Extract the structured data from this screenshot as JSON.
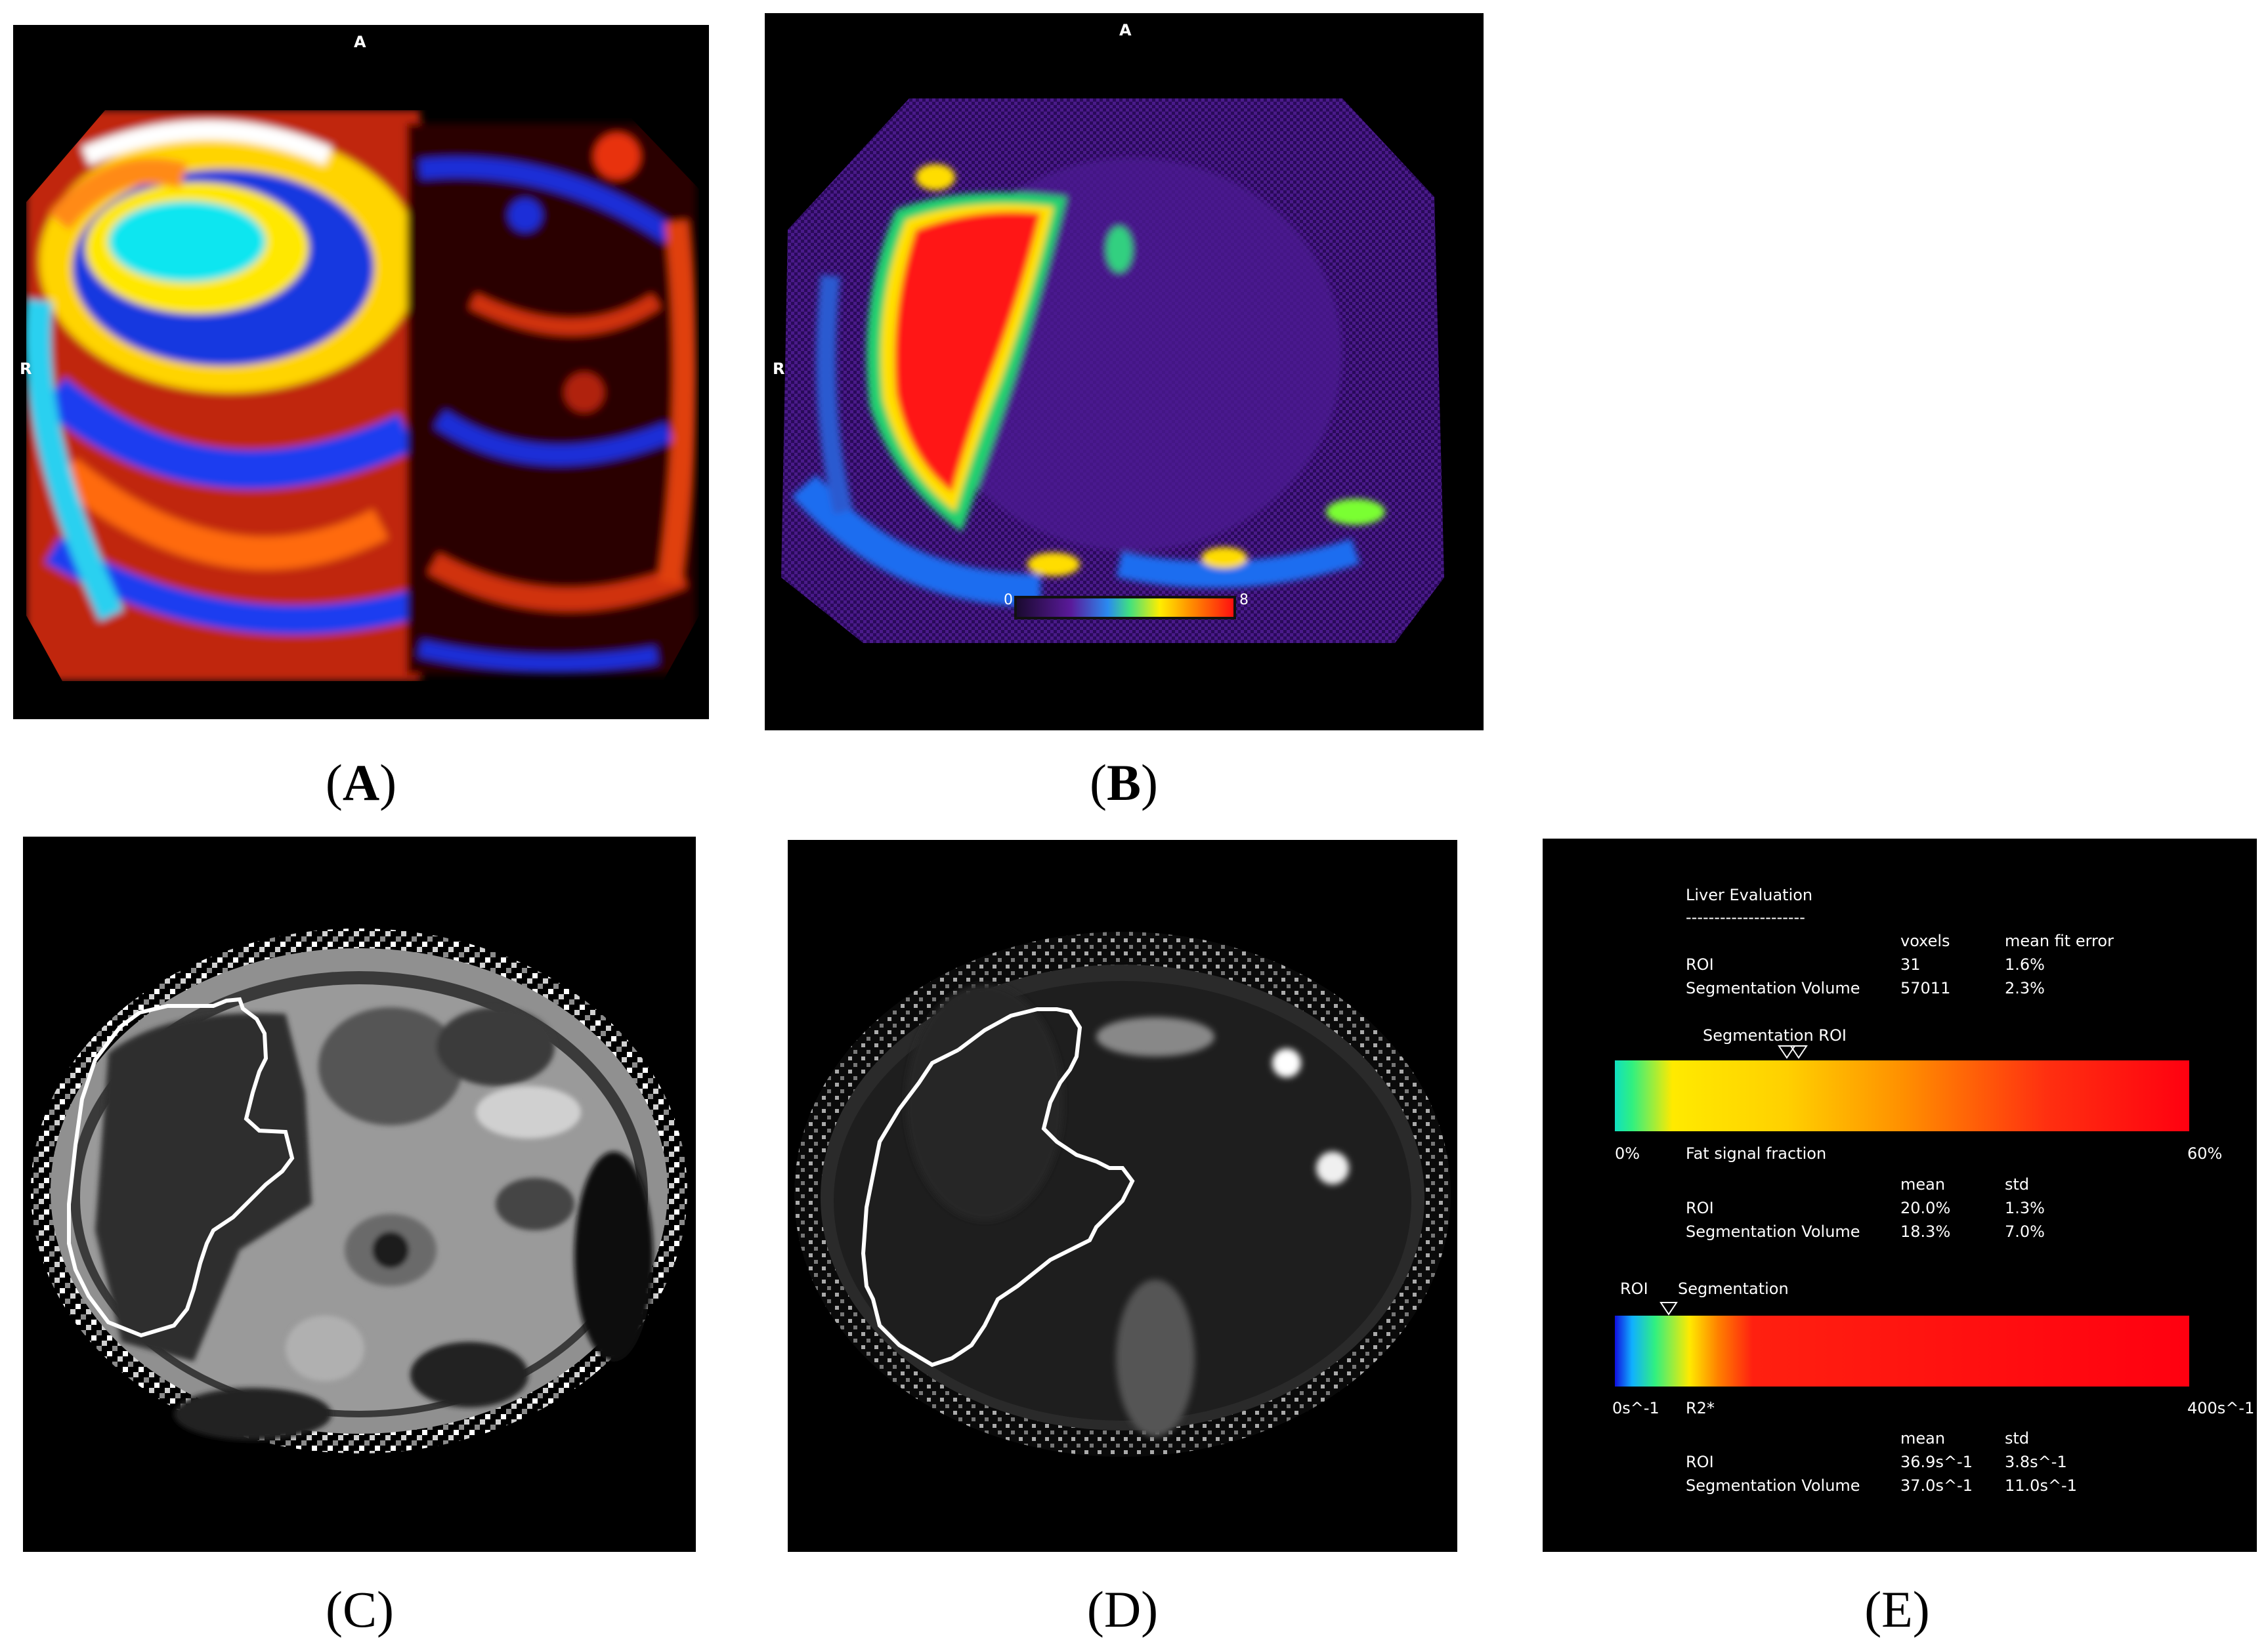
{
  "panels": {
    "a": {
      "caption_open": "(",
      "caption_letter": "A",
      "caption_close": ")",
      "orient_top": "A",
      "orient_left": "R"
    },
    "b": {
      "caption_open": "(",
      "caption_letter": "B",
      "caption_close": ")",
      "orient_top": "A",
      "orient_left": "R",
      "scale_min": "0",
      "scale_max": "8"
    },
    "c": {
      "caption": "(C)"
    },
    "d": {
      "caption": "(D)"
    },
    "e": {
      "caption": "(E)",
      "title": "Liver Evaluation",
      "divider": "---------------------",
      "fit_table": {
        "headers": [
          "voxels",
          "mean fit error"
        ],
        "rows": [
          {
            "label": "ROI",
            "values": [
              "31",
              "1.6%"
            ]
          },
          {
            "label": "Segmentation Volume",
            "values": [
              "57011",
              "2.3%"
            ]
          }
        ]
      },
      "fat_marker_label": "Segmentation ROI",
      "fat_bar": {
        "min": "0%",
        "title": "Fat signal fraction",
        "max": "60%"
      },
      "fat_table": {
        "headers": [
          "mean",
          "std"
        ],
        "rows": [
          {
            "label": "ROI",
            "values": [
              "20.0%",
              "1.3%"
            ]
          },
          {
            "label": "Segmentation Volume",
            "values": [
              "18.3%",
              "7.0%"
            ]
          }
        ]
      },
      "r2_marker_labels": [
        "ROI",
        "Segmentation"
      ],
      "r2_bar": {
        "min": "0s^-1",
        "title": "R2*",
        "max": "400s^-1"
      },
      "r2_table": {
        "headers": [
          "mean",
          "std"
        ],
        "rows": [
          {
            "label": "ROI",
            "values": [
              "36.9s^-1",
              "3.8s^-1"
            ]
          },
          {
            "label": "Segmentation Volume",
            "values": [
              "37.0s^-1",
              "11.0s^-1"
            ]
          }
        ]
      }
    }
  }
}
